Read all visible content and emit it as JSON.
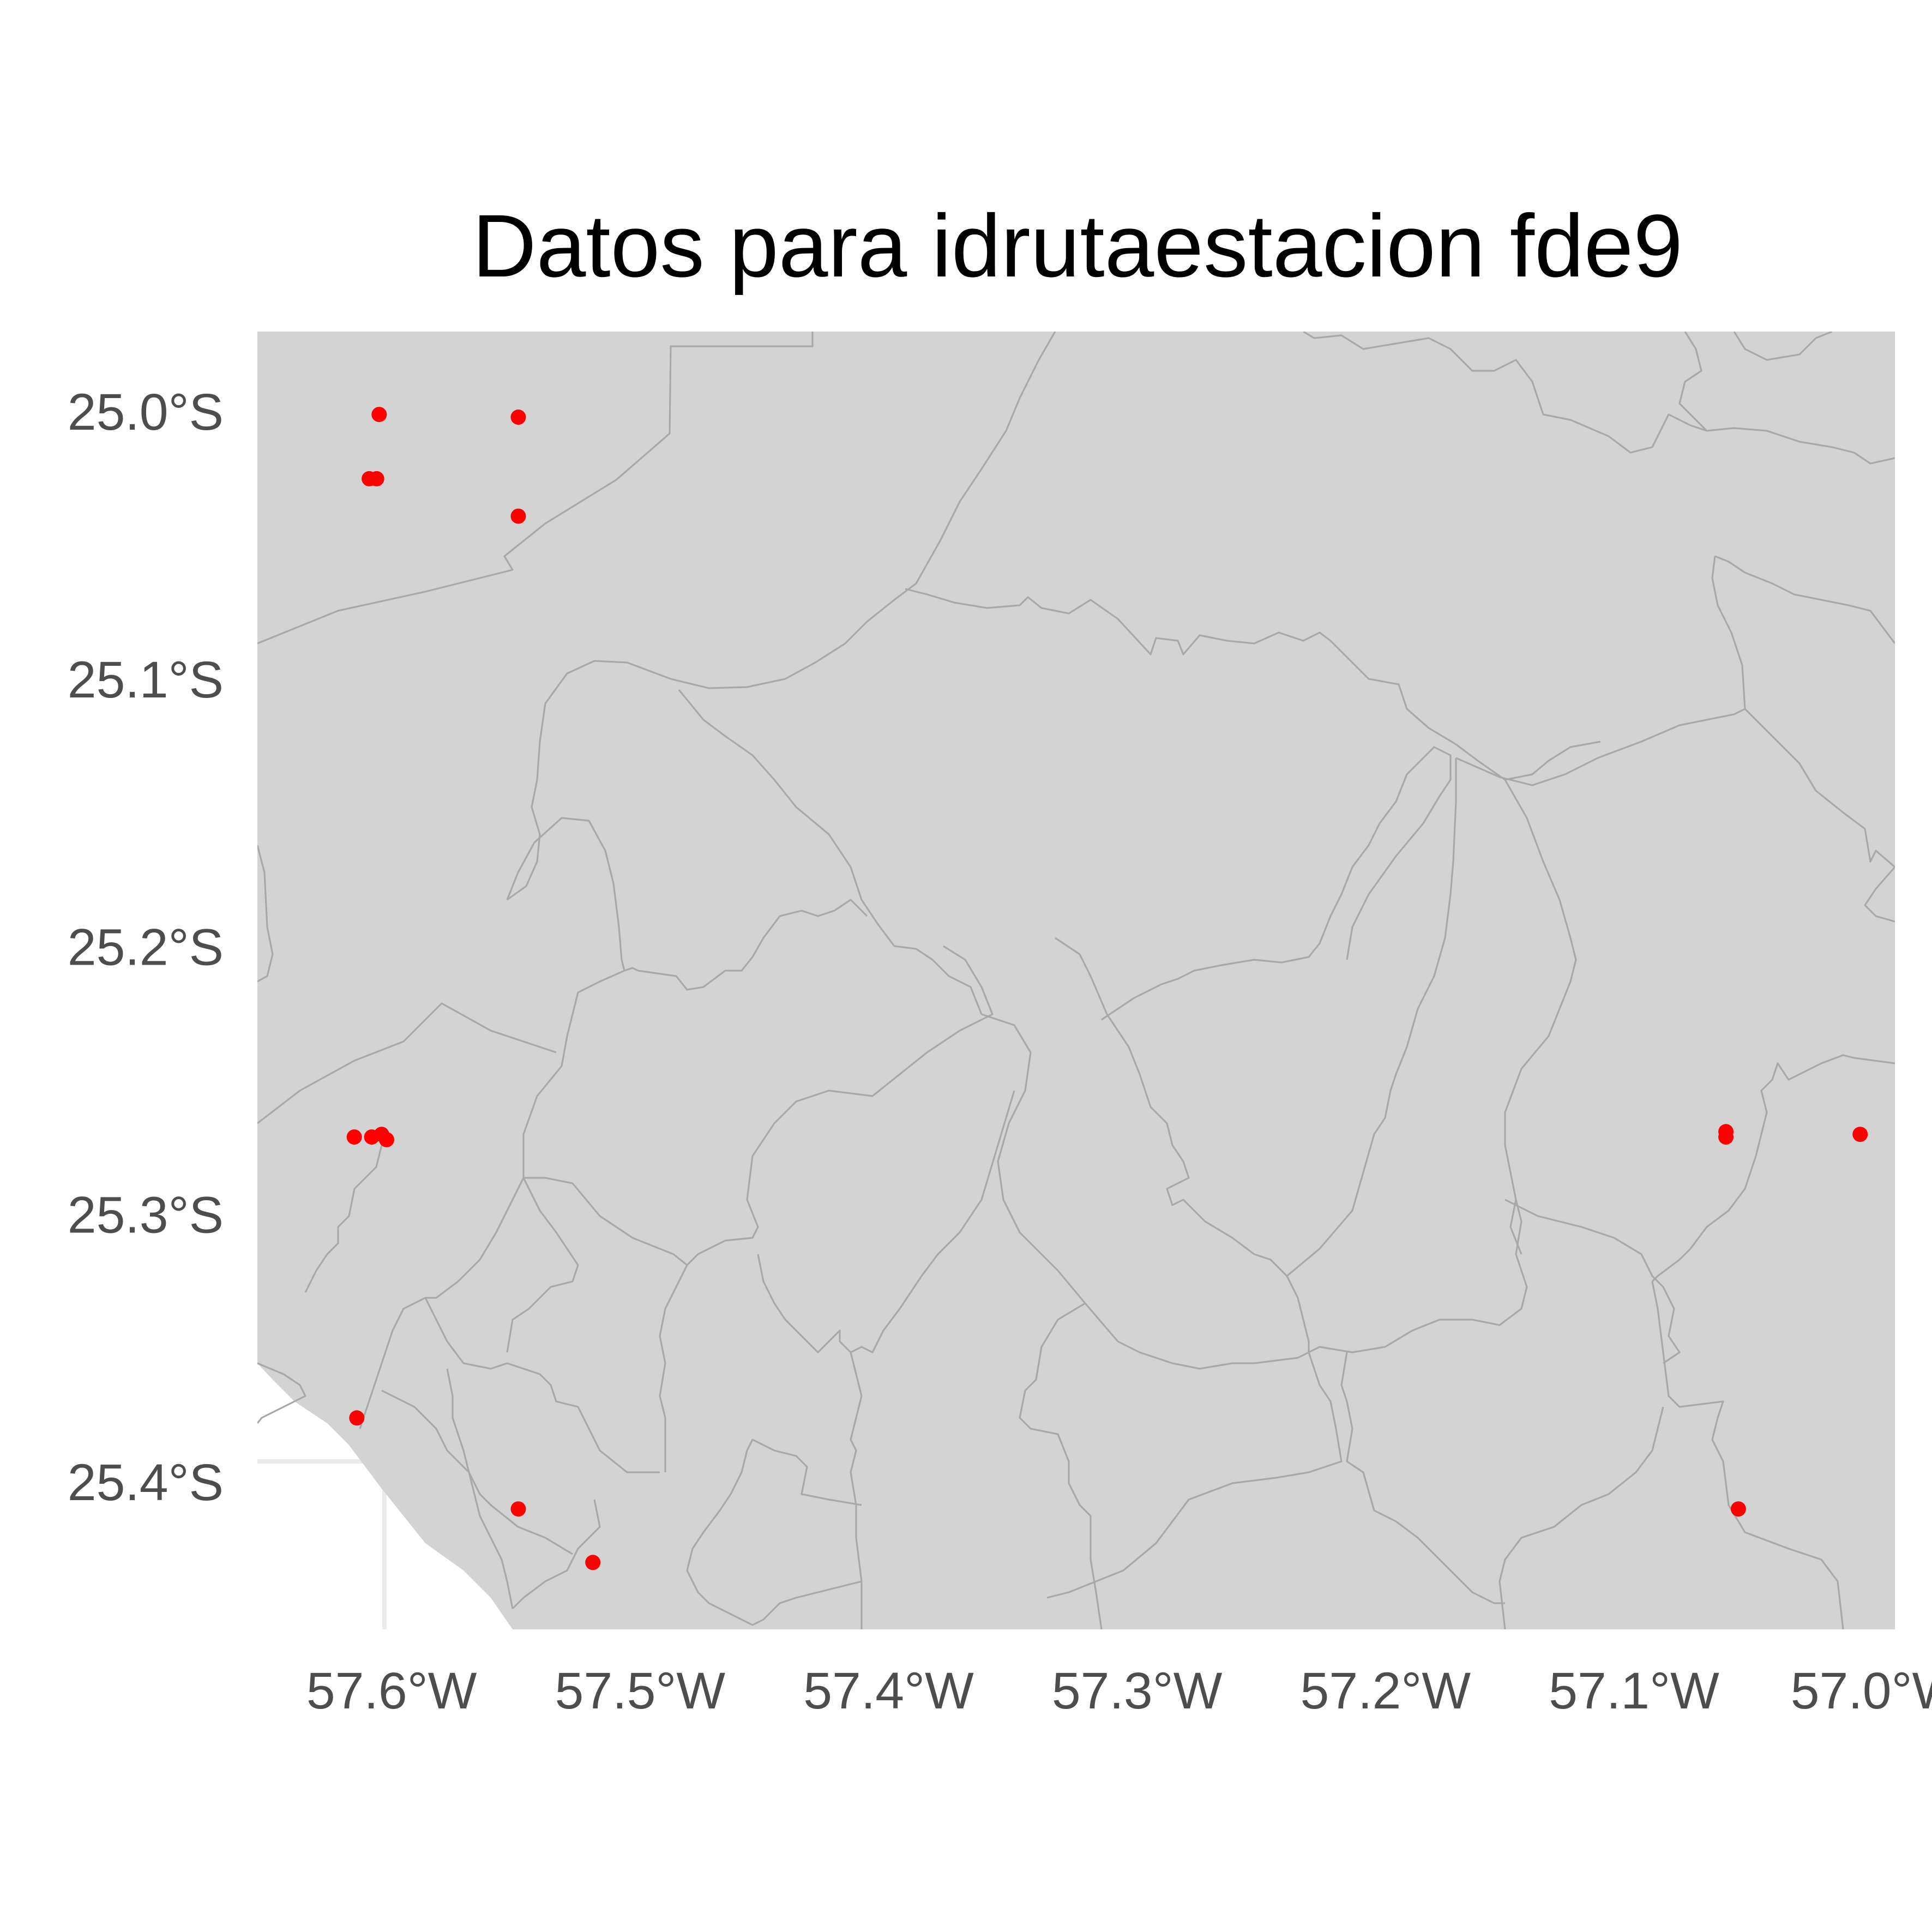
{
  "chart_data": {
    "type": "scatter",
    "title": "Datos para idrutaestacion fde9",
    "map": "political boundaries (grey polygons)",
    "background_color": "#d3d3d3",
    "border_color": "#a8a8a8",
    "point_color": "#ff0000",
    "xlim": [
      -57.654,
      -56.995
    ],
    "ylim": [
      -25.455,
      -24.97
    ],
    "x_ticks": [
      {
        "value": -57.6,
        "label": "57.6°W"
      },
      {
        "value": -57.5,
        "label": "57.5°W"
      },
      {
        "value": -57.4,
        "label": "57.4°W"
      },
      {
        "value": -57.3,
        "label": "57.3°W"
      },
      {
        "value": -57.2,
        "label": "57.2°W"
      },
      {
        "value": -57.1,
        "label": "57.1°W"
      },
      {
        "value": -57.0,
        "label": "57.0°W"
      }
    ],
    "y_ticks": [
      {
        "value": -25.0,
        "label": "25.0°S"
      },
      {
        "value": -25.1,
        "label": "25.1°S"
      },
      {
        "value": -25.2,
        "label": "25.2°S"
      },
      {
        "value": -25.3,
        "label": "25.3°S"
      },
      {
        "value": -25.4,
        "label": "25.4°S"
      }
    ],
    "points": [
      {
        "lon": -57.605,
        "lat": -25.001
      },
      {
        "lon": -57.549,
        "lat": -25.002
      },
      {
        "lon": -57.609,
        "lat": -25.025
      },
      {
        "lon": -57.606,
        "lat": -25.025
      },
      {
        "lon": -57.549,
        "lat": -25.039
      },
      {
        "lon": -57.615,
        "lat": -25.271
      },
      {
        "lon": -57.608,
        "lat": -25.271
      },
      {
        "lon": -57.604,
        "lat": -25.27
      },
      {
        "lon": -57.602,
        "lat": -25.272
      },
      {
        "lon": -57.614,
        "lat": -25.376
      },
      {
        "lon": -57.549,
        "lat": -25.41
      },
      {
        "lon": -57.519,
        "lat": -25.43
      },
      {
        "lon": -57.063,
        "lat": -25.269
      },
      {
        "lon": -57.063,
        "lat": -25.271
      },
      {
        "lon": -57.009,
        "lat": -25.27
      },
      {
        "lon": -57.058,
        "lat": -25.41
      }
    ]
  }
}
